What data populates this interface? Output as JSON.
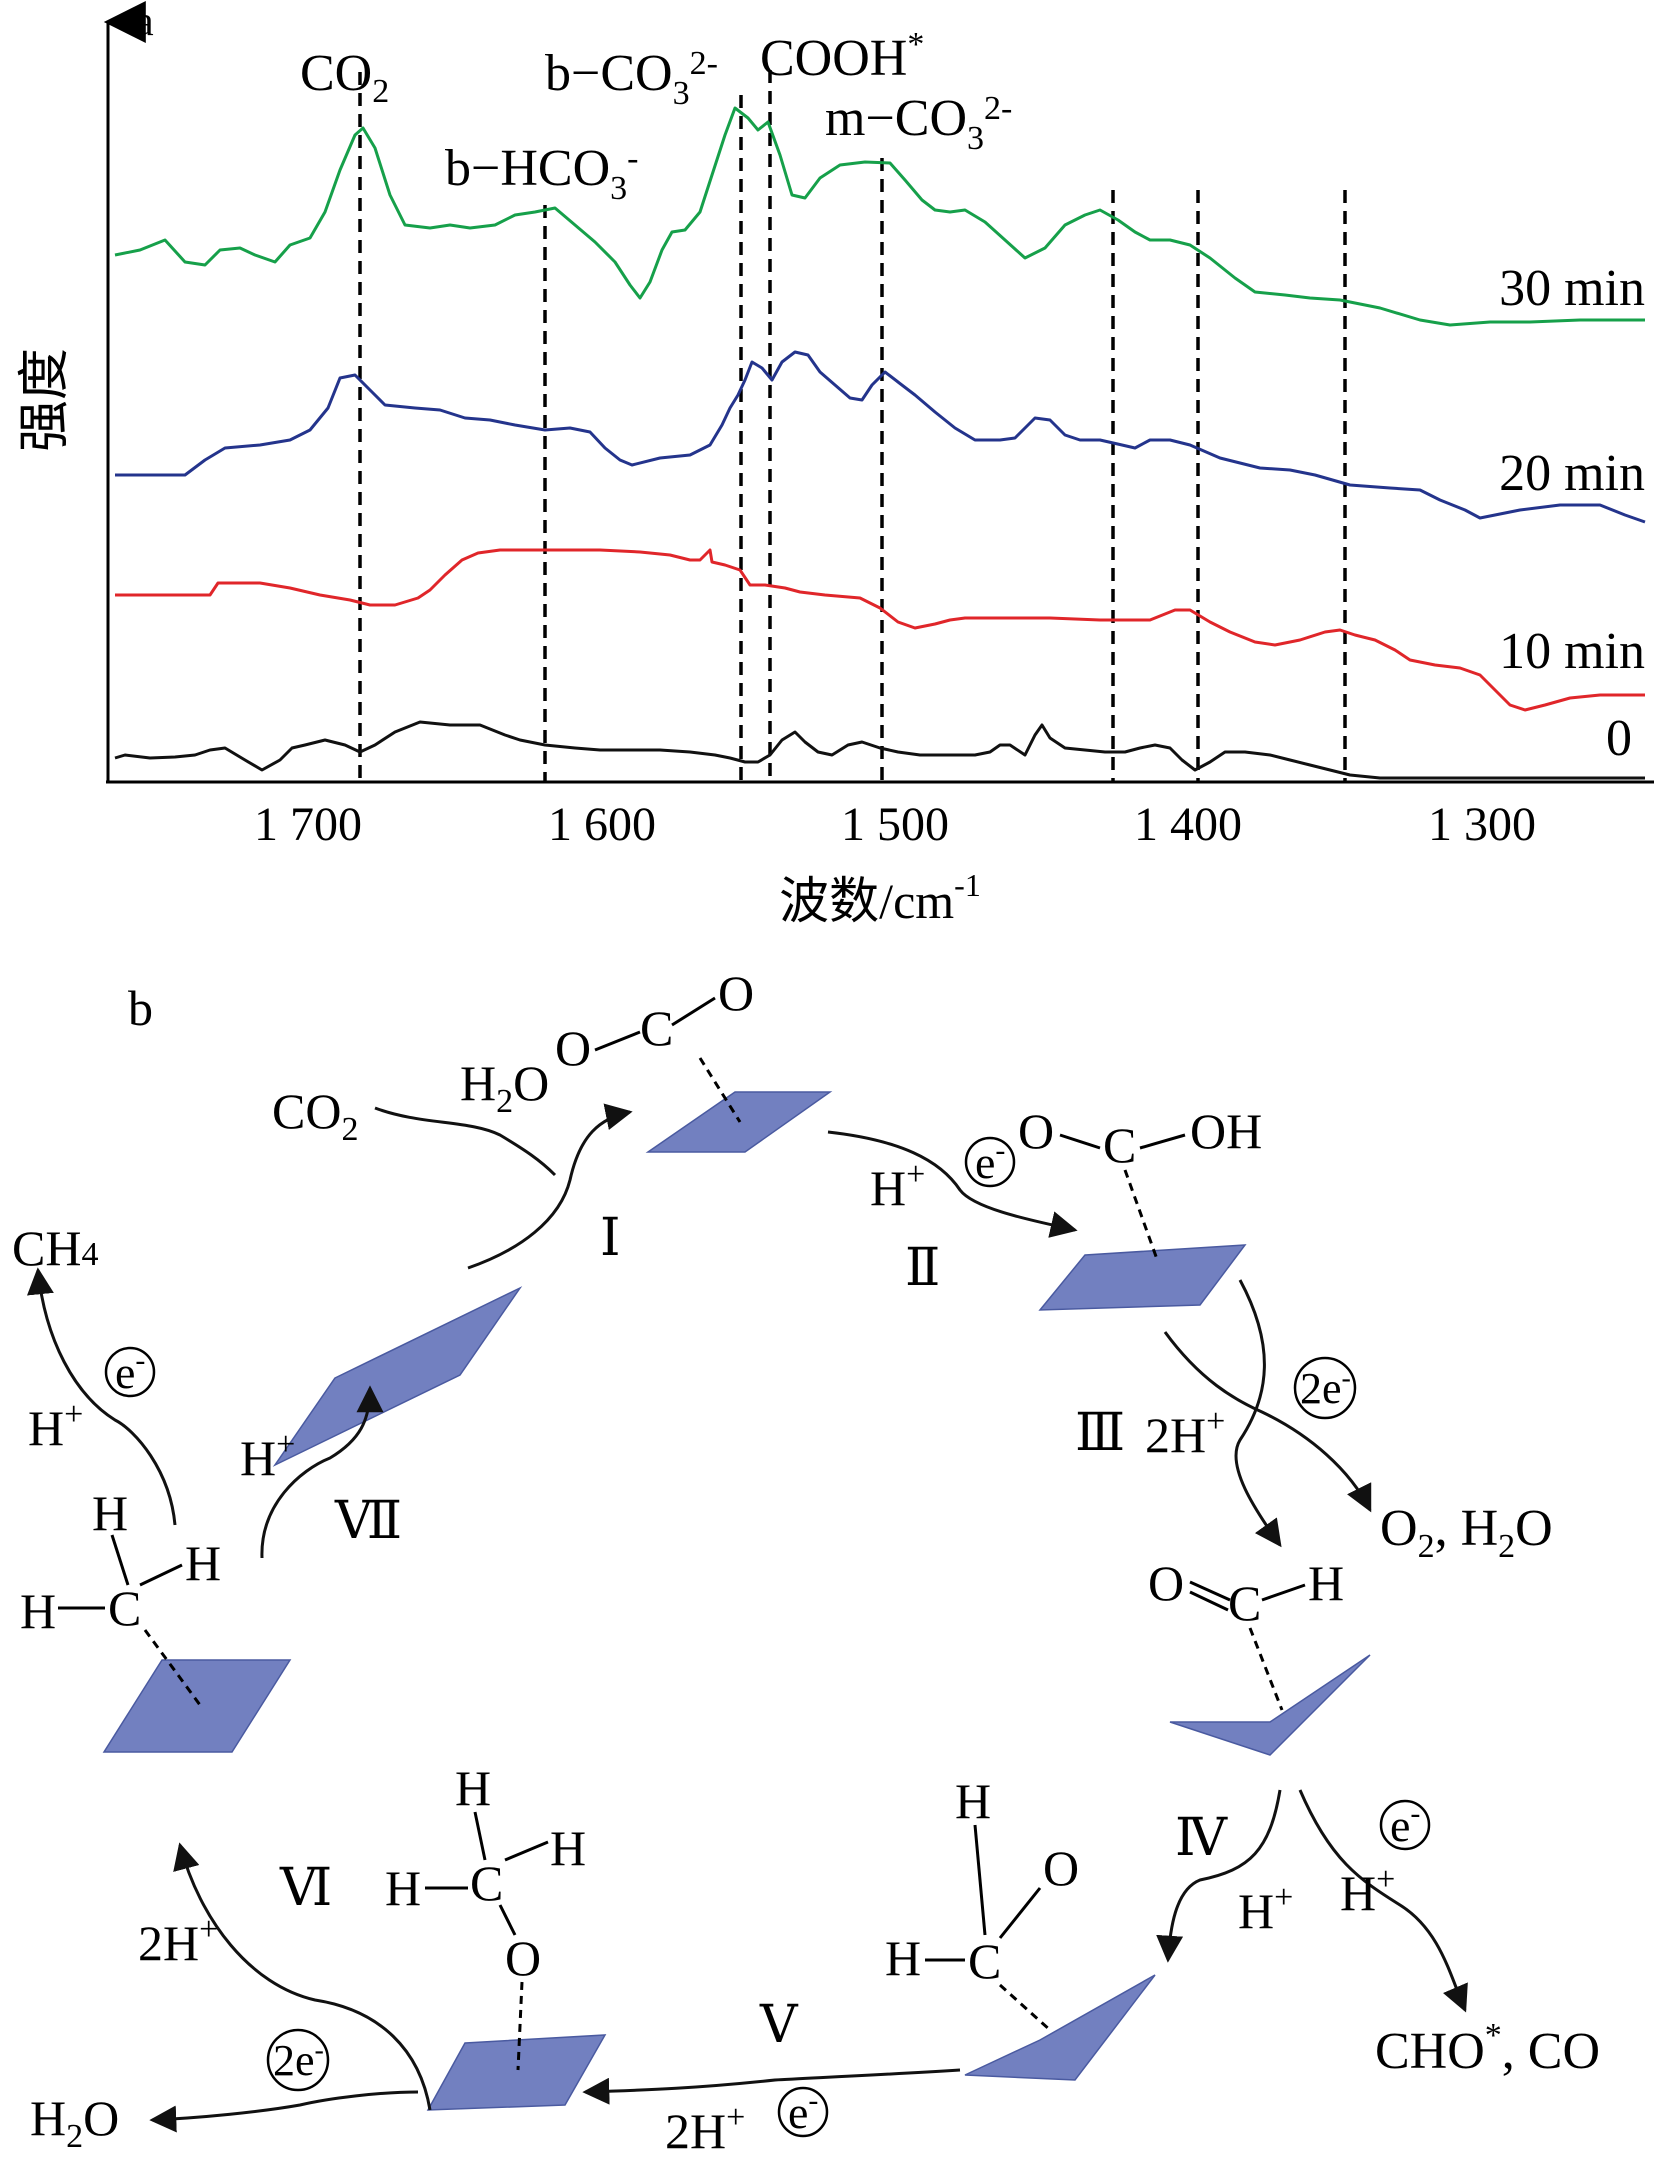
{
  "panel_a": {
    "label": "a",
    "ylabel": "强度",
    "xlabel_main": "波数/cm",
    "xlabel_sup": "-1",
    "xticks": [
      "1 700",
      "1 600",
      "1 500",
      "1 400",
      "1 300"
    ],
    "peaks": {
      "co2": {
        "main": "CO",
        "sub": "2"
      },
      "hco3": {
        "main": "b−HCO",
        "sub": "3",
        "sup": "-"
      },
      "bco3": {
        "main": "b−CO",
        "sub": "3",
        "sup": "2-"
      },
      "cooh": {
        "main": "COOH",
        "sup": "*"
      },
      "mco3": {
        "main": "m−CO",
        "sub": "3",
        "sup": "2-"
      }
    },
    "series": [
      {
        "label": "30 min",
        "color": "#16a04a"
      },
      {
        "label": "20 min",
        "color": "#24348c"
      },
      {
        "label": "10 min",
        "color": "#e0262a"
      },
      {
        "label": "0",
        "color": "#111111"
      }
    ]
  },
  "panel_b": {
    "label": "b",
    "surface_color": "#7280c0",
    "steps": {
      "I": "Ⅰ",
      "II": "Ⅱ",
      "III": "Ⅲ",
      "IV": "Ⅳ",
      "V": "Ⅴ",
      "VI": "Ⅵ",
      "VII": "Ⅶ"
    },
    "reagents": {
      "co2": {
        "main": "CO",
        "sub": "2"
      },
      "h2o": {
        "main": "H",
        "sub": "2",
        "tail": "O"
      },
      "h_plus": {
        "main": "H",
        "sup": "+"
      },
      "e_minus": {
        "main": "e",
        "sup": "-"
      },
      "two_e": {
        "main": "2e",
        "sup": "-"
      },
      "two_h_plus": {
        "main": "2H",
        "sup": "+"
      },
      "o2_h2o": {
        "a": "O",
        "a_sub": "2",
        "b": ", H",
        "b_sub": "2",
        "c": "O"
      },
      "cho_co": {
        "a": "CHO",
        "a_sup": "*",
        "b": ", CO"
      },
      "ch4": {
        "main": "CH",
        "sub": "4"
      },
      "h2o_out": {
        "main": "H",
        "sub": "2",
        "tail": "O"
      }
    },
    "atoms": {
      "C": "C",
      "O": "O",
      "H": "H",
      "OH": "OH"
    }
  }
}
